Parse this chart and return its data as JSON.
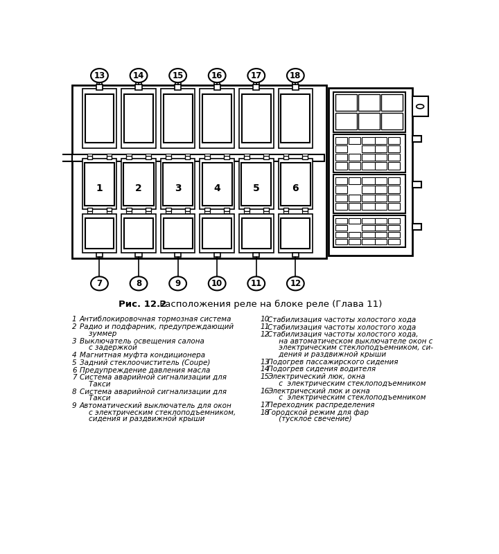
{
  "title_bold": "Рис. 12.2",
  "title_regular": " Расположения реле на блоке реле (Глава 11)",
  "bg_color": "#ffffff",
  "line_color": "#000000",
  "top_labels": [
    "13",
    "14",
    "15",
    "16",
    "17",
    "18"
  ],
  "bottom_labels": [
    "7",
    "8",
    "9",
    "10",
    "11",
    "12"
  ],
  "middle_labels": [
    "1",
    "2",
    "3",
    "4",
    "5",
    "6"
  ],
  "left_items": [
    [
      "1",
      "Антиблокировочная тормозная система"
    ],
    [
      "2",
      "Радио и подфарник, предупреждающий\n    зуммер"
    ],
    [
      "3",
      "Выключатель освещения салона\n    с задержкой"
    ],
    [
      "4",
      "Магнитная муфта кондиционера"
    ],
    [
      "5",
      "Задний стеклоочиститель (Coupe)"
    ],
    [
      "6",
      "Предупреждение давления масла"
    ],
    [
      "7",
      "Система аварийной сигнализации для\n    Такси"
    ],
    [
      "8",
      "Система аварийной сигнализации для\n    Такси"
    ],
    [
      "9",
      "Автоматический выключатель для окон\n    с электрическим стеклоподъемником,\n    сидения и раздвижной крыши"
    ]
  ],
  "right_items": [
    [
      "10",
      "Стабилизация частоты холостого хода"
    ],
    [
      "11",
      "Стабилизация частоты холостого хода"
    ],
    [
      "12",
      "Стабилизация частоты холостого хода,\n     на автоматическом выключателе окон с\n     электрическим стеклоподъемником, си-\n     дения и раздвижной крыши"
    ],
    [
      "13",
      "Подогрев пассажирского сидения"
    ],
    [
      "14",
      "Подогрев сидения водителя"
    ],
    [
      "15",
      "Электрический люк, окна\n     с  электрическим стеклоподъемником"
    ],
    [
      "16",
      "Электрический люк и окна\n     с  электрическим стеклоподъемником"
    ],
    [
      "17",
      "Переходник распределения"
    ],
    [
      "18",
      "Городской режим для фар\n     (тусклое свечение)"
    ]
  ]
}
